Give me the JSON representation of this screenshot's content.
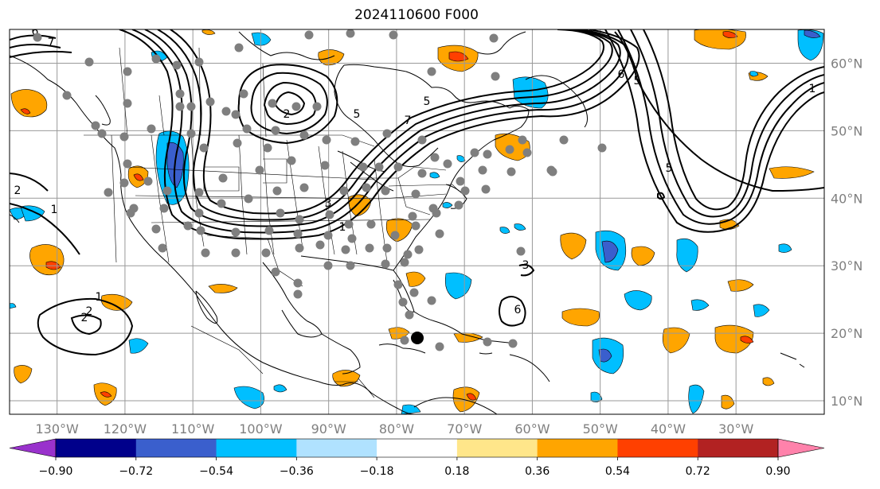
{
  "map": {
    "title": "2024110600 F000",
    "lon_labels": [
      "130°W",
      "120°W",
      "110°W",
      "100°W",
      "90°W",
      "80°W",
      "70°W",
      "60°W",
      "50°W",
      "40°W",
      "30°W"
    ],
    "lon_values": [
      -130,
      -120,
      -110,
      -100,
      -90,
      -80,
      -70,
      -60,
      -50,
      -40,
      -30
    ],
    "lat_labels": [
      "60°N",
      "50°N",
      "40°N",
      "30°N",
      "20°N",
      "10°N"
    ],
    "lat_values": [
      60,
      50,
      40,
      30,
      20,
      10
    ],
    "extent": {
      "lon_min": -137,
      "lon_max": -17,
      "lat_min": 8,
      "lat_max": 65
    },
    "grid": true,
    "contour_labels": [
      "6",
      "7",
      "1",
      "5",
      "2",
      "5",
      "1",
      "6",
      "5",
      "2",
      "2",
      "1",
      "7",
      "3",
      "1",
      "2",
      "3",
      "5",
      "6"
    ]
  },
  "colorbar": {
    "tick_labels": [
      "−0.90",
      "−0.72",
      "−0.54",
      "−0.36",
      "−0.18",
      "0.18",
      "0.36",
      "0.54",
      "0.72",
      "0.90"
    ],
    "boundaries": [
      -0.9,
      -0.72,
      -0.54,
      -0.36,
      -0.18,
      0.18,
      0.36,
      0.54,
      0.72,
      0.9
    ],
    "colors": [
      "#9932cc",
      "#00008b",
      "#3a5fcd",
      "#00bfff",
      "#b0e2ff",
      "#ffffff",
      "#ffe68a",
      "#ffa500",
      "#ff4000",
      "#b22222",
      "#ff82ab"
    ],
    "extend": "both"
  },
  "colors": {
    "grid": "#999999",
    "coast": "#000000",
    "station": "#7f7f7f",
    "contour": "#000000"
  }
}
